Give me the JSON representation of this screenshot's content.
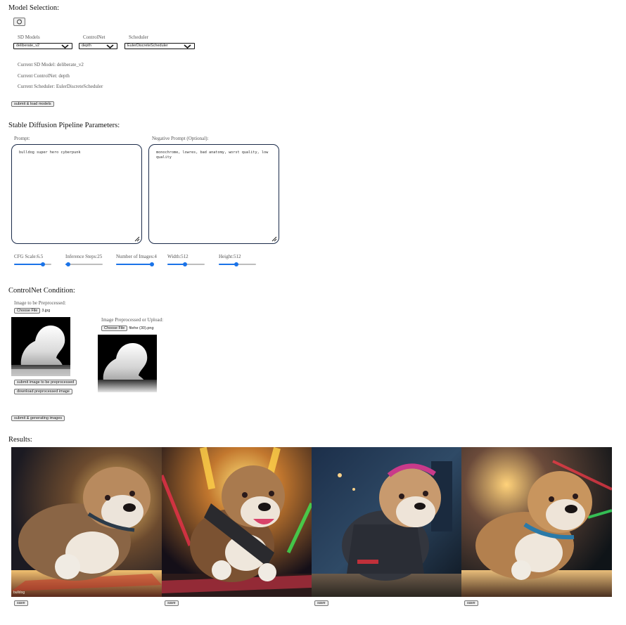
{
  "model_selection": {
    "title": "Model Selection:",
    "refresh_icon": "refresh-icon",
    "sd_models_label": "SD Models",
    "sd_models_value": "deliberate_v2",
    "controlnet_label": "ControlNet",
    "controlnet_value": "depth",
    "scheduler_label": "Scheduler",
    "scheduler_value": "EulerDiscreteScheduler",
    "current_sd_model": "Current SD Model: deliberate_v2",
    "current_controlnet": "Current ControlNet: depth",
    "current_scheduler": "Current Scheduler: EulerDiscreteScheduler",
    "submit_button": "submit & load models"
  },
  "pipeline": {
    "title": "Stable Diffusion Pipeline Parameters:",
    "prompt_label": "Prompt:",
    "prompt_value": "bulldog super hero cyberpunk",
    "negative_label": "Negative Prompt (Optional):",
    "negative_value": "monochrome, lowres, bad anatomy, worst quality, low quality",
    "sliders": {
      "cfg": {
        "label": "CFG Scale:6.5",
        "fraction": 0.77
      },
      "steps": {
        "label": "Inference Steps:25",
        "fraction": 0.08
      },
      "images": {
        "label": "Number of Images:4",
        "fraction": 0.96
      },
      "width": {
        "label": "Width:512",
        "fraction": 0.48
      },
      "height": {
        "label": "Height:512",
        "fraction": 0.48
      }
    }
  },
  "controlnet_condition": {
    "title": "ControlNet Condition:",
    "preprocess_label": "Image to be Preprocessed:",
    "choose_file_1": "Choose File",
    "file_1": "3.jpg",
    "submit_preprocess": "submit image to be preprocessed",
    "download_preprocessed": "download preprocessed image",
    "upload_label": "Image Preprocessed or Upload:",
    "choose_file_2": "Choose File",
    "file_2": "filehe (30).png"
  },
  "generate_button": "submit & generating images",
  "results": {
    "title": "Results:",
    "save_labels": [
      "save",
      "save",
      "save",
      "save"
    ],
    "corner_text": "bulldog"
  },
  "colors": {
    "accent": "#1a73e8",
    "textarea_border": "#1b2b4a"
  }
}
